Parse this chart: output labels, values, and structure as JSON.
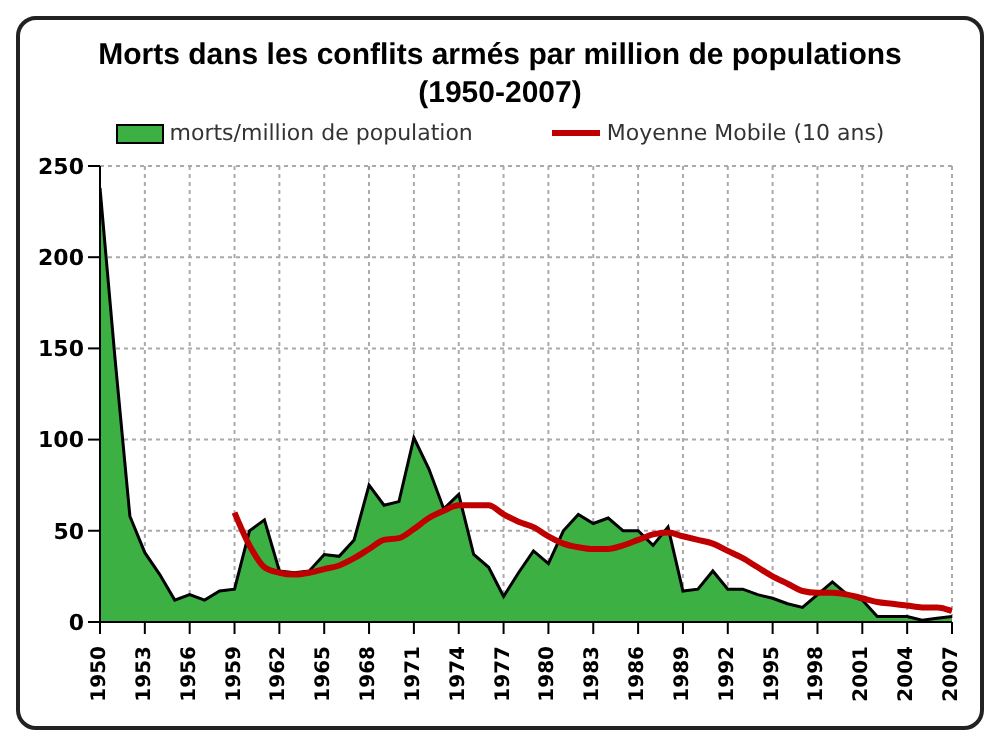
{
  "chart_data": {
    "type": "area",
    "title": "Morts dans les conflits armés par million de populations (1950-2007)",
    "x": [
      1950,
      1951,
      1952,
      1953,
      1954,
      1955,
      1956,
      1957,
      1958,
      1959,
      1960,
      1961,
      1962,
      1963,
      1964,
      1965,
      1966,
      1967,
      1968,
      1969,
      1970,
      1971,
      1972,
      1973,
      1974,
      1975,
      1976,
      1977,
      1978,
      1979,
      1980,
      1981,
      1982,
      1983,
      1984,
      1985,
      1986,
      1987,
      1988,
      1989,
      1990,
      1991,
      1992,
      1993,
      1994,
      1995,
      1996,
      1997,
      1998,
      1999,
      2000,
      2001,
      2002,
      2003,
      2004,
      2005,
      2006,
      2007
    ],
    "series": [
      {
        "name": "morts/million de population",
        "color": "#3cb043",
        "values": [
          238,
          145,
          58,
          38,
          26,
          12,
          15,
          12,
          17,
          18,
          50,
          56,
          28,
          27,
          28,
          37,
          36,
          45,
          75,
          64,
          66,
          101,
          84,
          62,
          70,
          37,
          30,
          14,
          27,
          39,
          32,
          50,
          59,
          54,
          57,
          50,
          50,
          42,
          52,
          17,
          18,
          28,
          18,
          18,
          15,
          13,
          10,
          8,
          15,
          22,
          15,
          12,
          3,
          3,
          3,
          1,
          2,
          3
        ]
      },
      {
        "name": "Moyenne Mobile (10 ans)",
        "type": "line",
        "color": "#c00000",
        "values": [
          null,
          null,
          null,
          null,
          null,
          null,
          null,
          null,
          null,
          60,
          42,
          30,
          27,
          26,
          27,
          29,
          31,
          35,
          40,
          45,
          46,
          51,
          57,
          61,
          64,
          64,
          64,
          59,
          55,
          52,
          47,
          43,
          41,
          40,
          40,
          42,
          45,
          48,
          49,
          47,
          45,
          43,
          39,
          35,
          30,
          25,
          21,
          17,
          16,
          16,
          15,
          13,
          11,
          10,
          9,
          8,
          8,
          6
        ]
      }
    ],
    "xlim": [
      1950,
      2007
    ],
    "xticks": [
      1950,
      1953,
      1956,
      1959,
      1962,
      1965,
      1968,
      1971,
      1974,
      1977,
      1980,
      1983,
      1986,
      1989,
      1992,
      1995,
      1998,
      2001,
      2004,
      2007
    ],
    "ylim": [
      0,
      250
    ],
    "yticks": [
      0,
      50,
      100,
      150,
      200,
      250
    ],
    "grid": true,
    "legend": "top",
    "marker": "none"
  }
}
